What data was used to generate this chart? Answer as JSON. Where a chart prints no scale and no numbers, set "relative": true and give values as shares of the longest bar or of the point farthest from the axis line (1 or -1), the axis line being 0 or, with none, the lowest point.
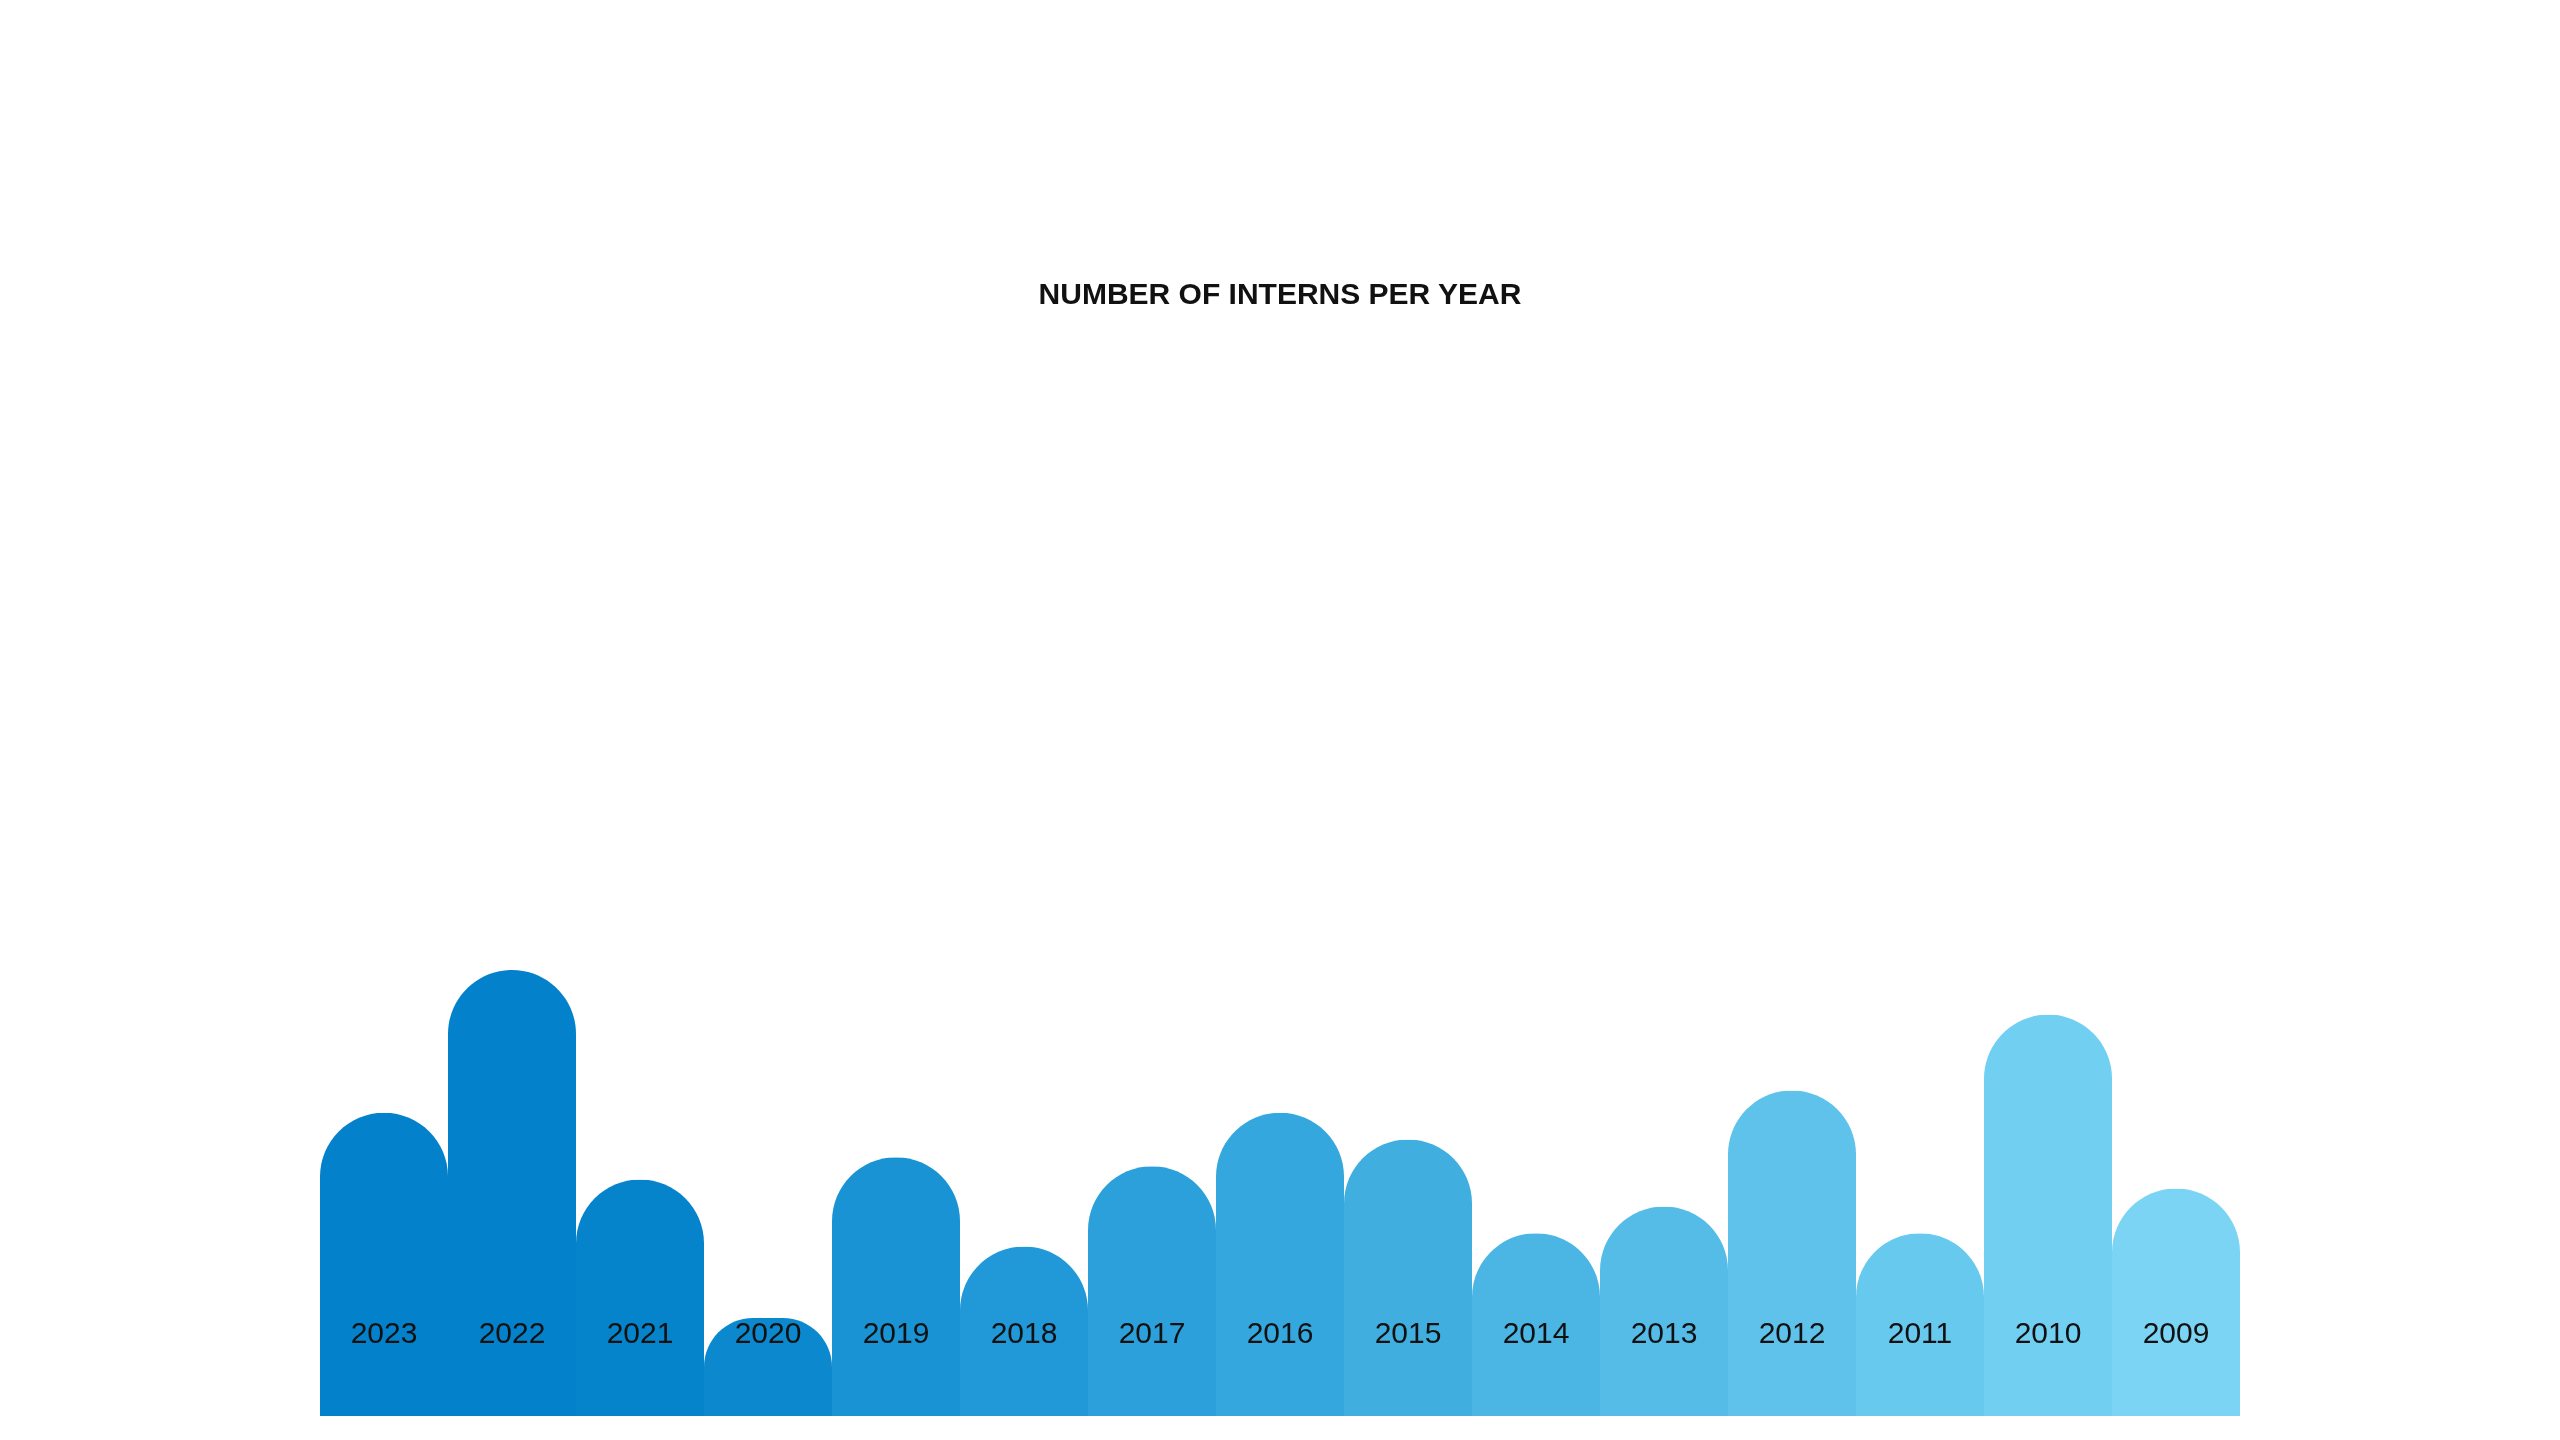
{
  "chart_data": {
    "type": "bar",
    "title": "NUMBER OF INTERNS PER YEAR",
    "relative": true,
    "categories": [
      "2023",
      "2022",
      "2021",
      "2020",
      "2019",
      "2018",
      "2017",
      "2016",
      "2015",
      "2014",
      "2013",
      "2012",
      "2011",
      "2010",
      "2009"
    ],
    "values": [
      0.68,
      1,
      0.53,
      0.22,
      0.58,
      0.38,
      0.56,
      0.68,
      0.62,
      0.41,
      0.47,
      0.73,
      0.41,
      0.9,
      0.51
    ],
    "colors": [
      "#0381cb",
      "#0382cb",
      "#0584cc",
      "#0c88ce",
      "#1a93d4",
      "#2198d7",
      "#2ba0da",
      "#34a7de",
      "#40afe0",
      "#4bb6e4",
      "#55bce7",
      "#5ec2ea",
      "#67c9ee",
      "#71cff2",
      "#7bd4f4"
    ]
  }
}
